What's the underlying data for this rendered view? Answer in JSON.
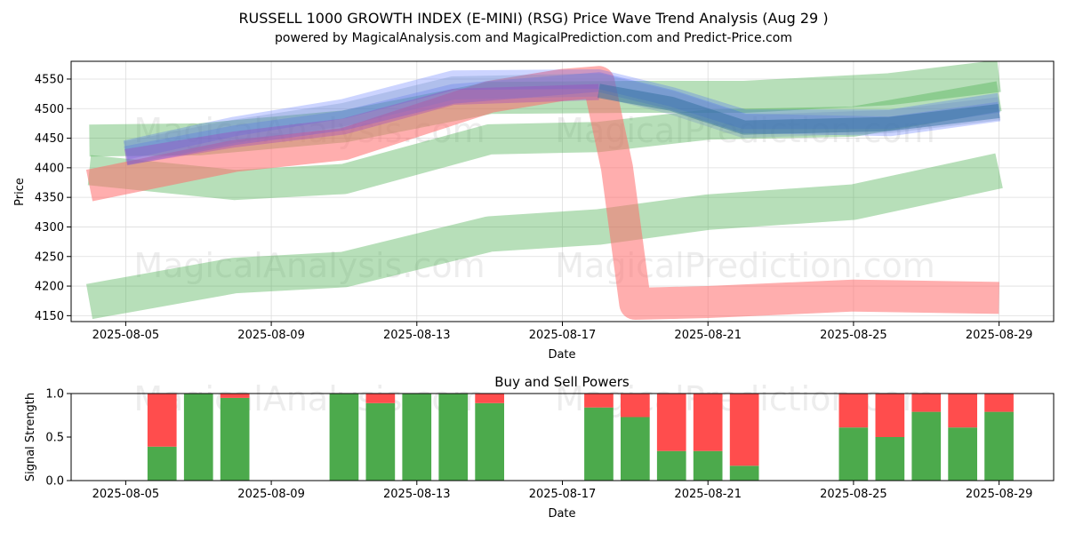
{
  "figure": {
    "title": "RUSSELL 1000 GROWTH INDEX (E-MINI) (RSG) Price Wave Trend Analysis (Aug 29 )",
    "subtitle": "powered by MagicalAnalysis.com and MagicalPrediction.com and Predict-Price.com",
    "watermarks": [
      "MagicalAnalysis.com",
      "MagicalPrediction.com"
    ]
  },
  "chart_data": [
    {
      "type": "area",
      "xlabel": "Date",
      "ylabel": "Price",
      "ylim": [
        4140,
        4580
      ],
      "xlim": [
        "2025-08-03 12:00",
        "2025-08-30 12:00"
      ],
      "xticks": [
        "2025-08-05",
        "2025-08-09",
        "2025-08-13",
        "2025-08-17",
        "2025-08-21",
        "2025-08-25",
        "2025-08-29"
      ],
      "yticks": [
        4150,
        4200,
        4250,
        4300,
        4350,
        4400,
        4450,
        4500,
        4550
      ],
      "grid": true,
      "bands": [
        {
          "color": "#4caf50",
          "opacity": 0.4,
          "width": 36,
          "points": [
            [
              "2025-08-04",
              4446
            ],
            [
              "2025-08-07",
              4448
            ],
            [
              "2025-08-11",
              4470
            ],
            [
              "2025-08-15",
              4518
            ],
            [
              "2025-08-19",
              4520
            ],
            [
              "2025-08-22",
              4520
            ],
            [
              "2025-08-26",
              4533
            ],
            [
              "2025-08-29",
              4555
            ]
          ]
        },
        {
          "color": "#4caf50",
          "opacity": 0.4,
          "width": 34,
          "points": [
            [
              "2025-08-04",
              4396
            ],
            [
              "2025-08-08",
              4371
            ],
            [
              "2025-08-11",
              4381
            ],
            [
              "2025-08-15",
              4448
            ],
            [
              "2025-08-18",
              4452
            ],
            [
              "2025-08-21",
              4473
            ],
            [
              "2025-08-25",
              4478
            ],
            [
              "2025-08-29",
              4521
            ]
          ]
        },
        {
          "color": "#4caf50",
          "opacity": 0.4,
          "width": 40,
          "points": [
            [
              "2025-08-04",
              4174
            ],
            [
              "2025-08-08",
              4218
            ],
            [
              "2025-08-11",
              4228
            ],
            [
              "2025-08-15",
              4288
            ],
            [
              "2025-08-18",
              4300
            ],
            [
              "2025-08-21",
              4325
            ],
            [
              "2025-08-25",
              4342
            ],
            [
              "2025-08-29",
              4395
            ]
          ]
        },
        {
          "color": "#ff6b6b",
          "opacity": 0.55,
          "width": 36,
          "points": [
            [
              "2025-08-04",
              4370
            ],
            [
              "2025-08-08",
              4420
            ],
            [
              "2025-08-11",
              4440
            ],
            [
              "2025-08-15",
              4520
            ],
            [
              "2025-08-17",
              4540
            ],
            [
              "2025-08-18",
              4545
            ],
            [
              "2025-08-18 12:00",
              4400
            ],
            [
              "2025-08-19",
              4170
            ],
            [
              "2025-08-21",
              4173
            ],
            [
              "2025-08-25",
              4184
            ],
            [
              "2025-08-29",
              4180
            ]
          ]
        },
        {
          "color": "#3355ff",
          "opacity": 0.25,
          "width": 22,
          "points": [
            [
              "2025-08-05",
              4430
            ],
            [
              "2025-08-08",
              4470
            ],
            [
              "2025-08-11",
              4500
            ],
            [
              "2025-08-14",
              4548
            ],
            [
              "2025-08-18",
              4550
            ],
            [
              "2025-08-20",
              4520
            ],
            [
              "2025-08-22",
              4482
            ],
            [
              "2025-08-26",
              4482
            ],
            [
              "2025-08-29",
              4510
            ]
          ]
        },
        {
          "color": "#3355ff",
          "opacity": 0.25,
          "width": 22,
          "points": [
            [
              "2025-08-05",
              4420
            ],
            [
              "2025-08-08",
              4455
            ],
            [
              "2025-08-11",
              4480
            ],
            [
              "2025-08-14",
              4525
            ],
            [
              "2025-08-18",
              4545
            ],
            [
              "2025-08-20",
              4515
            ],
            [
              "2025-08-22",
              4475
            ],
            [
              "2025-08-26",
              4470
            ],
            [
              "2025-08-29",
              4495
            ]
          ]
        },
        {
          "color": "#7090c0",
          "opacity": 0.3,
          "width": 26,
          "points": [
            [
              "2025-08-05",
              4425
            ],
            [
              "2025-08-08",
              4462
            ],
            [
              "2025-08-11",
              4490
            ],
            [
              "2025-08-14",
              4535
            ],
            [
              "2025-08-18",
              4540
            ],
            [
              "2025-08-20",
              4510
            ],
            [
              "2025-08-22",
              4470
            ],
            [
              "2025-08-26",
              4478
            ],
            [
              "2025-08-29",
              4500
            ]
          ]
        },
        {
          "color": "#a040c0",
          "opacity": 0.35,
          "width": 18,
          "points": [
            [
              "2025-08-05",
              4418
            ],
            [
              "2025-08-08",
              4448
            ],
            [
              "2025-08-11",
              4470
            ],
            [
              "2025-08-14",
              4520
            ],
            [
              "2025-08-18",
              4528
            ]
          ]
        },
        {
          "color": "#2a6a9a",
          "opacity": 0.45,
          "width": 16,
          "points": [
            [
              "2025-08-18",
              4530
            ],
            [
              "2025-08-20",
              4508
            ],
            [
              "2025-08-22",
              4468
            ],
            [
              "2025-08-26",
              4474
            ],
            [
              "2025-08-29",
              4496
            ]
          ]
        }
      ]
    },
    {
      "type": "bar",
      "title": "Buy and Sell Powers",
      "xlabel": "Date",
      "ylabel": "Signal Strength",
      "ylim": [
        0,
        1.0
      ],
      "yticks": [
        "0.0",
        "0.5",
        "1.0"
      ],
      "xticks": [
        "2025-08-05",
        "2025-08-09",
        "2025-08-13",
        "2025-08-17",
        "2025-08-21",
        "2025-08-25",
        "2025-08-29"
      ],
      "colors": {
        "buy": "#4caa4c",
        "sell": "#ff4d4d"
      },
      "dates": [
        "2025-08-06",
        "2025-08-07",
        "2025-08-08",
        "2025-08-11",
        "2025-08-12",
        "2025-08-13",
        "2025-08-14",
        "2025-08-15",
        "2025-08-18",
        "2025-08-19",
        "2025-08-20",
        "2025-08-21",
        "2025-08-22",
        "2025-08-25",
        "2025-08-26",
        "2025-08-27",
        "2025-08-28",
        "2025-08-29"
      ],
      "series": [
        {
          "name": "buy",
          "values": [
            0.39,
            1.0,
            0.95,
            1.0,
            0.89,
            1.0,
            1.0,
            0.89,
            0.84,
            0.73,
            0.34,
            0.34,
            0.17,
            0.61,
            0.5,
            0.79,
            0.61,
            0.79
          ]
        },
        {
          "name": "sell",
          "values": [
            0.61,
            0.0,
            0.05,
            0.0,
            0.11,
            0.0,
            0.0,
            0.11,
            0.16,
            0.27,
            0.66,
            0.66,
            0.83,
            0.39,
            0.5,
            0.21,
            0.39,
            0.21
          ]
        }
      ]
    }
  ]
}
